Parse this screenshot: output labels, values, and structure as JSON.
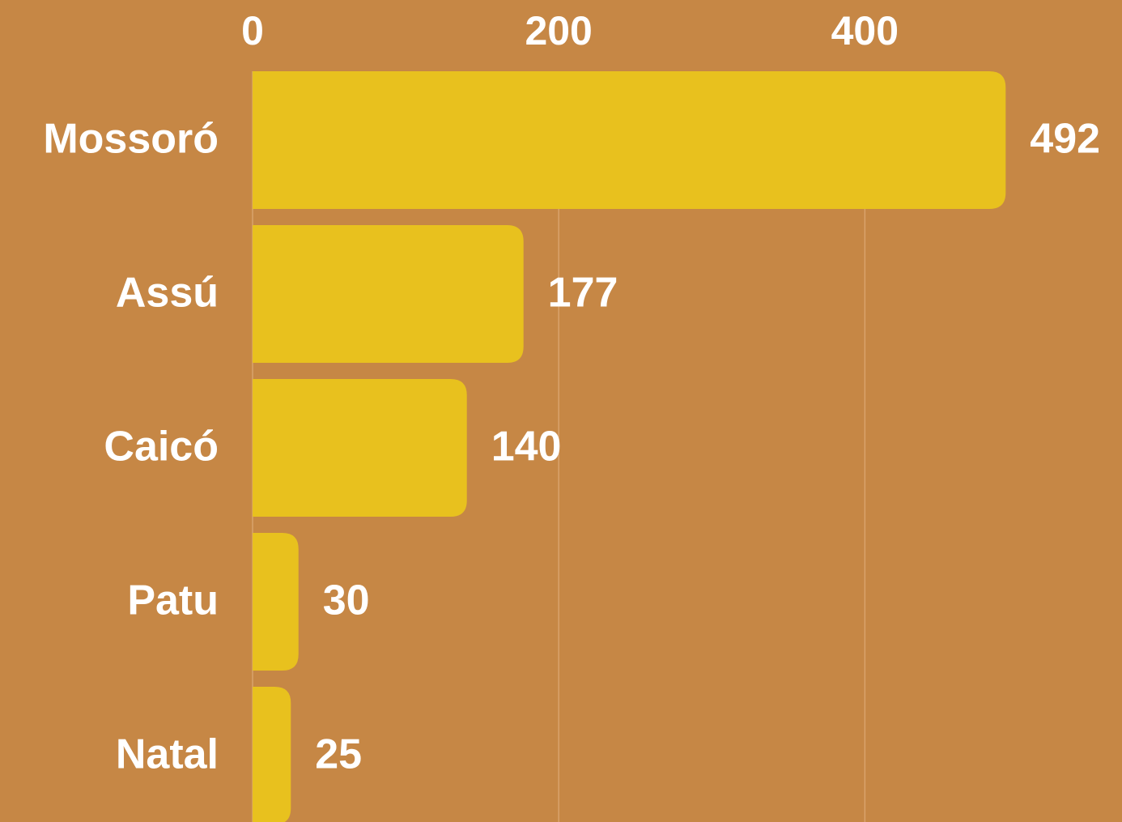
{
  "chart_data": {
    "type": "bar",
    "orientation": "horizontal",
    "categories": [
      "Mossoró",
      "Assú",
      "Caicó",
      "Patu",
      "Natal"
    ],
    "values": [
      492,
      177,
      140,
      30,
      25
    ],
    "color": "#e8c11e",
    "xlim": [
      0,
      568
    ],
    "xticks": [
      0,
      200,
      400
    ],
    "grid": true
  }
}
